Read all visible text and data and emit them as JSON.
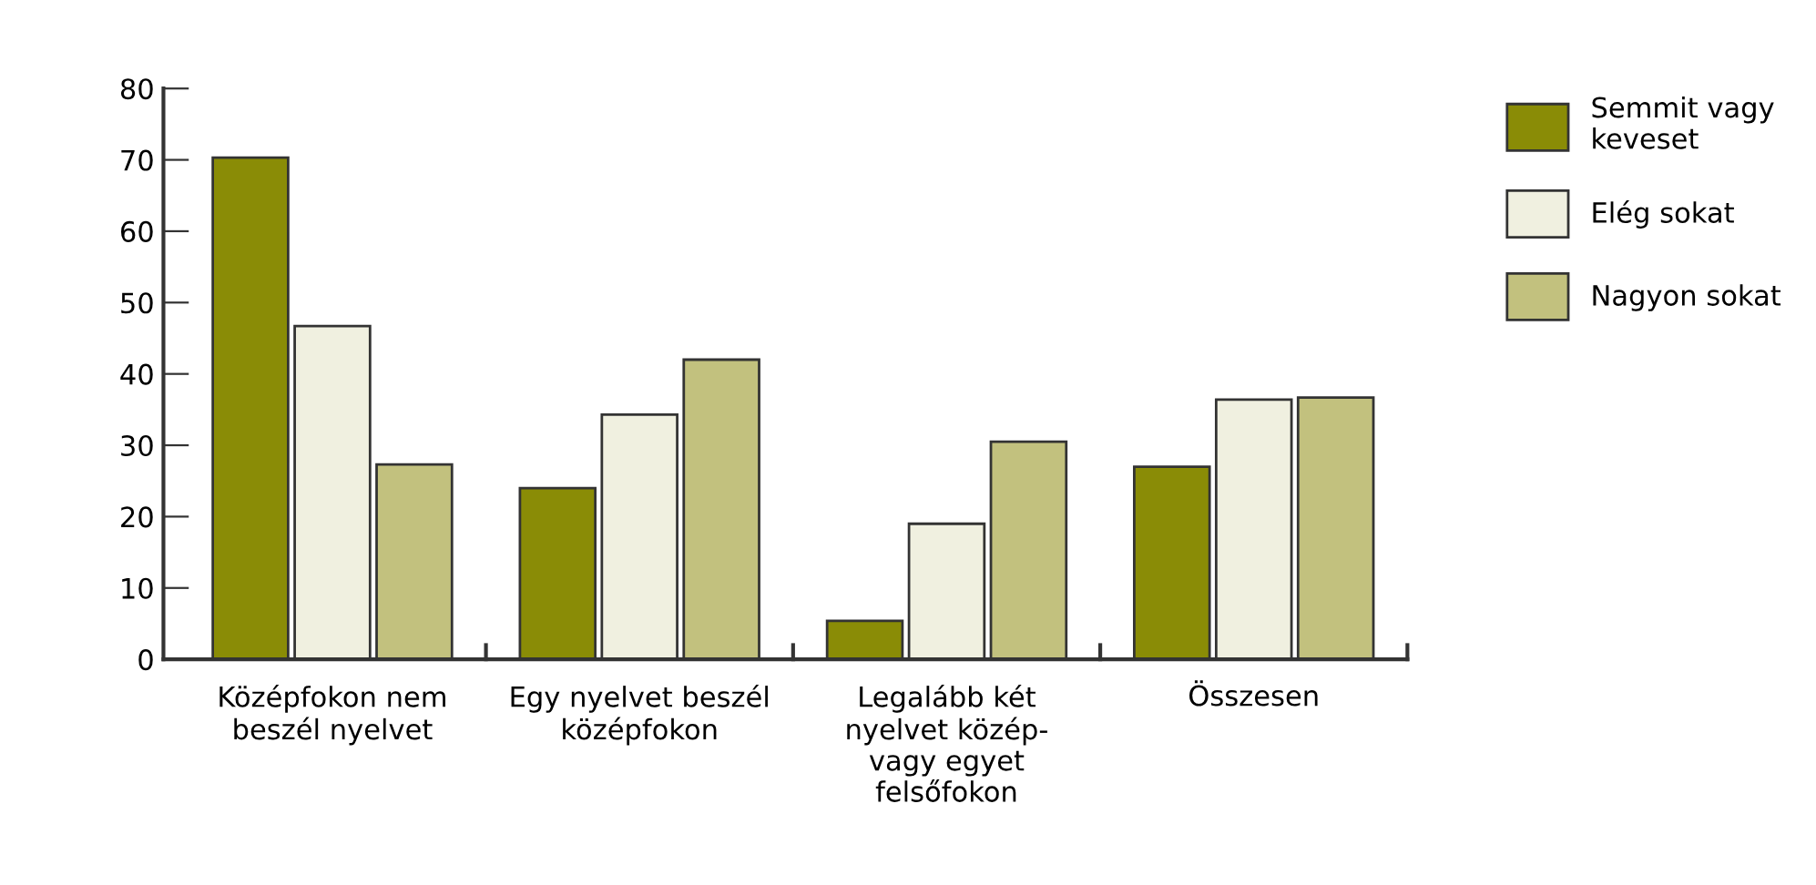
{
  "chart_data": {
    "type": "bar",
    "categories": [
      "Középfokon nem\nbeszél nyelvet",
      "Egy nyelvet beszél\nközépfokon",
      "Legalább két\nnyelvet közép-\nvagy egyet\nfelsőfokon",
      "Összesen"
    ],
    "series": [
      {
        "name": "Semmit vagy\nkeveset",
        "color": "#8a8c06",
        "values": [
          70.3,
          24,
          5.4,
          27
        ]
      },
      {
        "name": "Elég sokat",
        "color": "#f0f0e0",
        "values": [
          46.7,
          34.3,
          19,
          36.4
        ]
      },
      {
        "name": "Nagyon sokat",
        "color": "#c2c17e",
        "values": [
          27.3,
          42,
          30.5,
          36.7
        ]
      }
    ],
    "ylim": [
      0,
      80
    ],
    "yticks": [
      0,
      10,
      20,
      30,
      40,
      50,
      60,
      70,
      80
    ],
    "grid": false,
    "legend": "right"
  }
}
